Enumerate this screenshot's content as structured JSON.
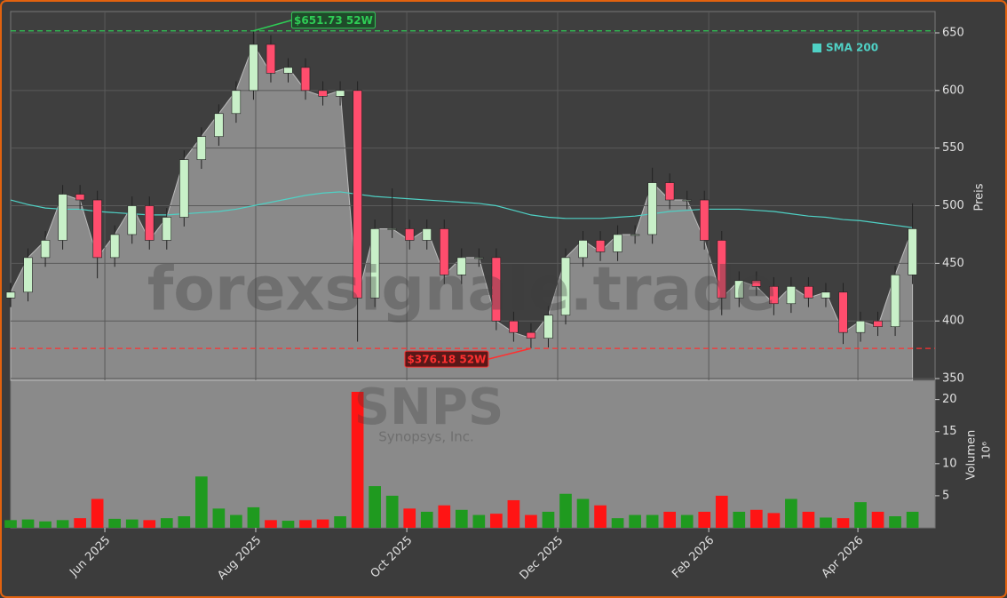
{
  "chart_data": {
    "type": "candlestick",
    "x": [
      0,
      1,
      2,
      3,
      4,
      5,
      6,
      7,
      8,
      9,
      10,
      11,
      12,
      13,
      14,
      15,
      16,
      17,
      18,
      19,
      20,
      21,
      22,
      23,
      24,
      25,
      26,
      27,
      28,
      29,
      30,
      31,
      32,
      33,
      34,
      35,
      36,
      37,
      38,
      39,
      40,
      41,
      42,
      43,
      44,
      45,
      46,
      47,
      48,
      49,
      50,
      51,
      52
    ],
    "open": [
      420,
      425,
      455,
      470,
      510,
      505,
      455,
      475,
      500,
      470,
      490,
      540,
      560,
      580,
      600,
      640,
      615,
      620,
      600,
      595,
      600,
      420,
      480,
      480,
      470,
      480,
      440,
      455,
      455,
      400,
      390,
      385,
      405,
      455,
      470,
      460,
      475,
      475,
      520,
      505,
      505,
      470,
      420,
      435,
      430,
      415,
      430,
      420,
      425,
      390,
      400,
      395,
      440
    ],
    "high": [
      433,
      463,
      478,
      518,
      518,
      513,
      483,
      508,
      508,
      498,
      548,
      568,
      588,
      608,
      651.73,
      648,
      628,
      628,
      608,
      608,
      608,
      488,
      515,
      488,
      488,
      488,
      463,
      463,
      463,
      408,
      398,
      413,
      463,
      478,
      478,
      483,
      483,
      533,
      528,
      513,
      513,
      478,
      443,
      443,
      438,
      438,
      438,
      433,
      433,
      408,
      408,
      448,
      502
    ],
    "low": [
      412,
      417,
      447,
      462,
      497,
      437,
      447,
      467,
      462,
      462,
      482,
      532,
      552,
      572,
      592,
      607,
      607,
      592,
      587,
      587,
      382,
      412,
      472,
      462,
      462,
      432,
      432,
      447,
      392,
      382,
      376.18,
      377,
      397,
      447,
      452,
      452,
      467,
      467,
      497,
      497,
      462,
      405,
      412,
      422,
      405,
      407,
      412,
      412,
      380,
      382,
      387,
      387,
      432
    ],
    "close": [
      425,
      455,
      470,
      510,
      505,
      455,
      475,
      500,
      470,
      490,
      540,
      560,
      580,
      600,
      640,
      615,
      620,
      600,
      595,
      600,
      420,
      480,
      480,
      470,
      480,
      440,
      455,
      455,
      400,
      390,
      385,
      405,
      455,
      470,
      460,
      475,
      475,
      520,
      505,
      505,
      470,
      420,
      435,
      430,
      415,
      430,
      420,
      425,
      390,
      400,
      395,
      440,
      480
    ],
    "sma": {
      "name": "SMA 200",
      "color": "#4fd1c5",
      "values": [
        505,
        501,
        498,
        497,
        497,
        495,
        494,
        493,
        492,
        492,
        493,
        494,
        495,
        497,
        500,
        503,
        506,
        509,
        511,
        512,
        510,
        508,
        507,
        506,
        505,
        504,
        503,
        502,
        500,
        496,
        492,
        490,
        489,
        489,
        489,
        490,
        491,
        493,
        495,
        496,
        497,
        497,
        497,
        496,
        495,
        493,
        491,
        490,
        488,
        487,
        485,
        483,
        481
      ]
    },
    "volume": [
      1.2,
      1.3,
      1.0,
      1.2,
      1.5,
      4.5,
      1.4,
      1.3,
      1.2,
      1.5,
      1.8,
      8.0,
      3.0,
      2.0,
      3.2,
      1.2,
      1.1,
      1.2,
      1.3,
      1.8,
      21.2,
      6.5,
      5.0,
      3.0,
      2.5,
      3.5,
      2.8,
      2.0,
      2.2,
      4.3,
      2.0,
      2.5,
      5.3,
      4.5,
      3.5,
      1.5,
      2.0,
      2.0,
      2.5,
      2.0,
      2.5,
      5.0,
      2.5,
      2.8,
      2.3,
      4.5,
      2.5,
      1.6,
      1.5,
      4.0,
      2.5,
      1.8,
      2.5
    ],
    "up_color": "#1f9a1f",
    "down_color": "#ff1414",
    "xlim": [
      0,
      53.3
    ],
    "xticks": [
      {
        "value": 5.43,
        "label": "Jun 2025"
      },
      {
        "value": 14.13,
        "label": "Aug 2025"
      },
      {
        "value": 22.84,
        "label": "Oct 2025"
      },
      {
        "value": 31.54,
        "label": "Dec 2025"
      },
      {
        "value": 40.25,
        "label": "Feb 2026"
      },
      {
        "value": 48.85,
        "label": "Apr 2026"
      }
    ],
    "ylim": [
      348.5,
      668.5
    ],
    "yticks": [
      350,
      400,
      450,
      500,
      550,
      600,
      650
    ],
    "y_label": "Preis",
    "vol_ylim": [
      0,
      23
    ],
    "vol_yticks": [
      5,
      10,
      15,
      20
    ],
    "vol_label": "Volumen",
    "vol_unit": "10⁶",
    "annotations": [
      {
        "text": "$651.73 52W",
        "value": 651.73,
        "x": 14,
        "color": "#2ecc55"
      },
      {
        "text": "$376.18 52W",
        "value": 376.18,
        "x": 30,
        "color": "#ff3030"
      }
    ],
    "watermark": "forexsignale.trade",
    "ticker": "SNPS",
    "company": "Synopsys, Inc.",
    "grid": true
  }
}
